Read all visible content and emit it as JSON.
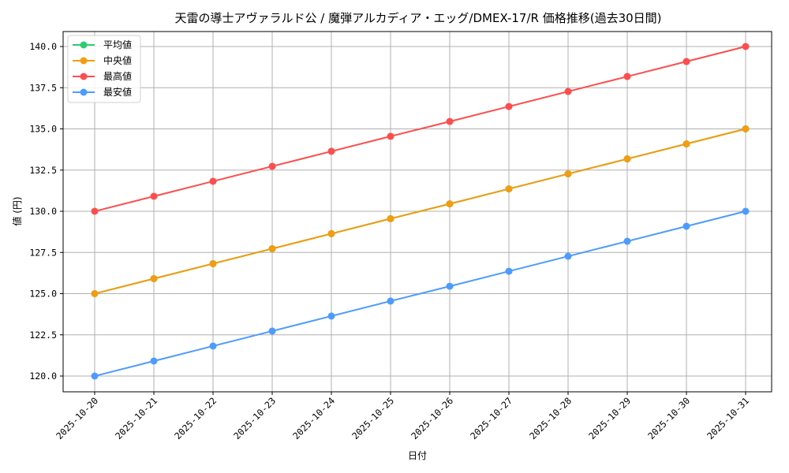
{
  "chart_data": {
    "type": "line",
    "title": "天雷の導士アヴァラルド公 / 魔弾アルカディア・エッグ/DMEX-17/R 価格推移(過去30日間)",
    "xlabel": "日付",
    "ylabel": "値 (円)",
    "categories": [
      "2025-10-20",
      "2025-10-21",
      "2025-10-22",
      "2025-10-23",
      "2025-10-24",
      "2025-10-25",
      "2025-10-26",
      "2025-10-27",
      "2025-10-28",
      "2025-10-29",
      "2025-10-30",
      "2025-10-31"
    ],
    "yticks": [
      "120.0",
      "122.5",
      "125.0",
      "127.5",
      "130.0",
      "132.5",
      "135.0",
      "137.5",
      "140.0"
    ],
    "ylim": [
      119.0,
      141.0
    ],
    "grid": true,
    "legend_position": "upper left",
    "series": [
      {
        "name": "平均値",
        "color": "#2ecc71",
        "values": [
          125.0,
          125.91,
          126.82,
          127.73,
          128.64,
          129.55,
          130.45,
          131.36,
          132.27,
          133.18,
          134.09,
          135.0
        ]
      },
      {
        "name": "中央値",
        "color": "#f39c12",
        "values": [
          125.0,
          125.91,
          126.82,
          127.73,
          128.64,
          129.55,
          130.45,
          131.36,
          132.27,
          133.18,
          134.09,
          135.0
        ]
      },
      {
        "name": "最高値",
        "color": "#ff4d4d",
        "values": [
          130.0,
          130.91,
          131.82,
          132.73,
          133.64,
          134.55,
          135.45,
          136.36,
          137.27,
          138.18,
          139.09,
          140.0
        ]
      },
      {
        "name": "最安値",
        "color": "#4d9bff",
        "values": [
          120.0,
          120.91,
          121.82,
          122.73,
          123.64,
          124.55,
          125.45,
          126.36,
          127.27,
          128.18,
          129.09,
          130.0
        ]
      }
    ]
  }
}
